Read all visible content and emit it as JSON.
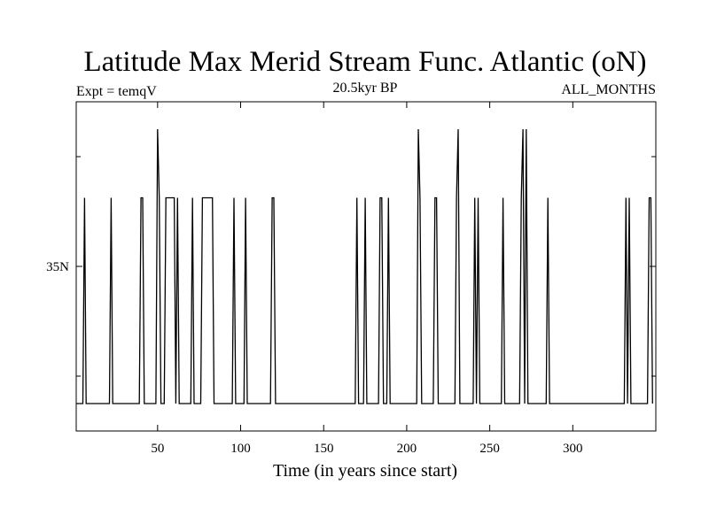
{
  "chart_data": {
    "type": "line",
    "title": "Latitude Max Merid Stream Func. Atlantic (oN)",
    "subtitle_left": "Expt = temqV",
    "subtitle_center": "20.5kyr BP",
    "subtitle_right": "ALL_MONTHS",
    "xlabel": "Time (in years since start)",
    "ylabel": "",
    "xlim": [
      1,
      350
    ],
    "ylim": [
      29,
      41
    ],
    "x_ticks": [
      50,
      100,
      150,
      200,
      250,
      300
    ],
    "x_tick_labels": [
      "50",
      "100",
      "150",
      "200",
      "250",
      "300"
    ],
    "y_ticks": [
      35
    ],
    "y_tick_labels": [
      "35N"
    ],
    "y_minor_ticks": [
      31,
      39
    ],
    "grid": false,
    "legend": "none",
    "series": [
      {
        "color": "#000000",
        "x": [
          1,
          5,
          6,
          7,
          21,
          22,
          23,
          39,
          40,
          41,
          42,
          49,
          50,
          51,
          52,
          54,
          55,
          60,
          61,
          62,
          63,
          64,
          70,
          71,
          72,
          73,
          76,
          77,
          79,
          83,
          84,
          85,
          95,
          96,
          97,
          98,
          102,
          103,
          104,
          118,
          119,
          120,
          121,
          169,
          170,
          171,
          174,
          175,
          176,
          183,
          184,
          185,
          186,
          188,
          189,
          190,
          191,
          206,
          207,
          208,
          209,
          216,
          217,
          218,
          219,
          229,
          230,
          231,
          232,
          240,
          241,
          242,
          243,
          244,
          245,
          257,
          258,
          259,
          268,
          269,
          270,
          271,
          272,
          273,
          274,
          284,
          285,
          286,
          331,
          332,
          333,
          334,
          335,
          336,
          345,
          346,
          347,
          348
        ],
        "values": [
          30,
          30,
          37.5,
          30,
          30,
          37.5,
          30,
          30,
          37.5,
          37.5,
          30,
          30,
          40,
          37.5,
          30,
          30,
          37.5,
          37.5,
          30,
          37.5,
          30,
          30,
          30,
          37.5,
          30,
          30,
          30,
          37.5,
          37.5,
          37.5,
          30,
          30,
          30,
          37.5,
          30,
          30,
          30,
          37.5,
          30,
          30,
          37.5,
          37.5,
          30,
          30,
          37.5,
          30,
          30,
          37.5,
          30,
          30,
          37.5,
          37.5,
          30,
          30,
          37.5,
          30,
          30,
          30,
          40,
          37.5,
          30,
          30,
          37.5,
          37.5,
          30,
          30,
          37.5,
          40,
          30,
          30,
          37.5,
          30,
          37.5,
          30,
          30,
          30,
          37.5,
          30,
          30,
          37.5,
          40,
          30,
          40,
          30,
          30,
          30,
          37.5,
          30,
          30,
          37.5,
          30,
          37.5,
          30,
          30,
          30,
          37.5,
          37.5,
          30
        ]
      }
    ]
  }
}
